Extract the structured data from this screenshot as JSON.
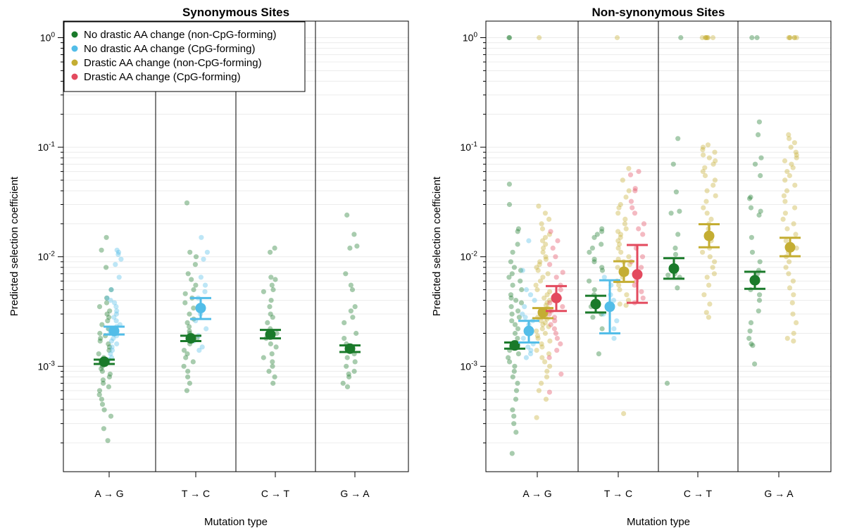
{
  "chart_data": [
    {
      "type": "scatter",
      "title": "Synonymous Sites",
      "xlabel": "Mutation type",
      "ylabel": "Predicted selection coefficient",
      "y_scale": "log10",
      "ylim": [
        0.00012,
        1.5
      ],
      "y_ticks": [
        {
          "value": 0.001,
          "base": "10",
          "exp": "-3"
        },
        {
          "value": 0.01,
          "base": "10",
          "exp": "-2"
        },
        {
          "value": 0.1,
          "base": "10",
          "exp": "-1"
        },
        {
          "value": 1,
          "base": "10",
          "exp": "0"
        }
      ],
      "grid": true,
      "legend_position": "top-left",
      "categories": [
        "A → G",
        "T → C",
        "C → T",
        "G → A"
      ],
      "series": [
        {
          "name": "No drastic AA change (non-CpG-forming)",
          "color": "#1a7a2a",
          "points": [
            {
              "category": "A → G",
              "values": [
                0.015,
                0.0115,
                0.008,
                0.005,
                0.0042,
                0.0038,
                0.0035,
                0.0032,
                0.003,
                0.0028,
                0.0026,
                0.0024,
                0.0022,
                0.002,
                0.0019,
                0.0018,
                0.0017,
                0.0016,
                0.0015,
                0.0014,
                0.0013,
                0.0012,
                0.0011,
                0.001,
                0.00095,
                0.0009,
                0.00085,
                0.0008,
                0.00075,
                0.0007,
                0.00065,
                0.0006,
                0.00055,
                0.0005,
                0.00045,
                0.0004,
                0.00035,
                0.00027,
                0.00021
              ]
            },
            {
              "category": "T → C",
              "values": [
                0.031,
                0.011,
                0.01,
                0.0085,
                0.007,
                0.0062,
                0.0055,
                0.005,
                0.0046,
                0.0042,
                0.0038,
                0.0034,
                0.003,
                0.0027,
                0.0025,
                0.0023,
                0.0021,
                0.002,
                0.0018,
                0.0016,
                0.0014,
                0.0013,
                0.0012,
                0.0011,
                0.001,
                0.0009,
                0.0008,
                0.0007,
                0.0006
              ]
            },
            {
              "category": "C → T",
              "values": [
                0.012,
                0.011,
                0.0065,
                0.0062,
                0.0055,
                0.005,
                0.0048,
                0.004,
                0.0035,
                0.003,
                0.0028,
                0.0025,
                0.0022,
                0.002,
                0.0018,
                0.0016,
                0.0015,
                0.0013,
                0.0012,
                0.0011,
                0.001,
                0.0009,
                0.0008,
                0.0007
              ]
            },
            {
              "category": "G → A",
              "values": [
                0.024,
                0.016,
                0.0125,
                0.012,
                0.007,
                0.0055,
                0.005,
                0.0035,
                0.0032,
                0.0028,
                0.0025,
                0.002,
                0.0018,
                0.0016,
                0.0015,
                0.0013,
                0.0012,
                0.0011,
                0.001,
                0.0009,
                0.00085,
                0.0008,
                0.0007,
                0.00065
              ]
            }
          ],
          "means": [
            {
              "category": "A → G",
              "mean": 0.0011,
              "lower": 0.00105,
              "upper": 0.00115
            },
            {
              "category": "T → C",
              "mean": 0.0018,
              "lower": 0.0017,
              "upper": 0.0019
            },
            {
              "category": "C → T",
              "mean": 0.00195,
              "lower": 0.0018,
              "upper": 0.00215
            },
            {
              "category": "G → A",
              "mean": 0.00145,
              "lower": 0.00135,
              "upper": 0.00155
            }
          ]
        },
        {
          "name": "No drastic AA change (CpG-forming)",
          "color": "#52bde8",
          "points": [
            {
              "category": "A → G",
              "values": [
                0.0115,
                0.011,
                0.0105,
                0.0095,
                0.0085,
                0.0065,
                0.005,
                0.0042,
                0.004,
                0.0038,
                0.0035,
                0.0032,
                0.003,
                0.0028,
                0.0026,
                0.0024,
                0.0023,
                0.0022,
                0.0021,
                0.002,
                0.0019,
                0.0018,
                0.0017,
                0.0016,
                0.0015,
                0.0014,
                0.0013,
                0.0012,
                0.00115
              ]
            },
            {
              "category": "T → C",
              "values": [
                0.015,
                0.011,
                0.0095,
                0.0065,
                0.0055,
                0.0048,
                0.0042,
                0.0036,
                0.003,
                0.0026,
                0.0022,
                0.0019,
                0.0017,
                0.0015,
                0.0014
              ]
            }
          ],
          "means": [
            {
              "category": "A → G",
              "mean": 0.0021,
              "lower": 0.00195,
              "upper": 0.0023
            },
            {
              "category": "T → C",
              "mean": 0.0034,
              "lower": 0.0027,
              "upper": 0.0042
            }
          ]
        }
      ]
    },
    {
      "type": "scatter",
      "title": "Non-synonymous Sites",
      "xlabel": "Mutation type",
      "ylabel": "Predicted selection coefficient",
      "y_scale": "log10",
      "ylim": [
        0.00012,
        1.5
      ],
      "y_ticks": [
        {
          "value": 0.001,
          "base": "10",
          "exp": "-3"
        },
        {
          "value": 0.01,
          "base": "10",
          "exp": "-2"
        },
        {
          "value": 0.1,
          "base": "10",
          "exp": "-1"
        },
        {
          "value": 1,
          "label": "10",
          "base": "10",
          "exp": "0"
        }
      ],
      "grid": true,
      "categories": [
        "A → G",
        "T → C",
        "C → T",
        "G → A"
      ],
      "series": [
        {
          "name": "No drastic AA change (non-CpG-forming)",
          "color": "#1a7a2a",
          "points": [
            {
              "category": "A → G",
              "values": [
                1,
                1,
                0.046,
                0.03,
                0.018,
                0.017,
                0.013,
                0.011,
                0.009,
                0.008,
                0.0075,
                0.007,
                0.0065,
                0.006,
                0.0055,
                0.005,
                0.0045,
                0.0042,
                0.004,
                0.0038,
                0.0035,
                0.0032,
                0.003,
                0.0028,
                0.0026,
                0.0024,
                0.0022,
                0.002,
                0.0018,
                0.0016,
                0.0015,
                0.0014,
                0.0013,
                0.0012,
                0.0011,
                0.001,
                0.0009,
                0.0008,
                0.0007,
                0.0006,
                0.0005,
                0.0004,
                0.00035,
                0.0003,
                0.00025,
                0.00016
              ]
            },
            {
              "category": "T → C",
              "values": [
                0.018,
                0.017,
                0.016,
                0.015,
                0.013,
                0.012,
                0.011,
                0.0095,
                0.009,
                0.008,
                0.0075,
                0.006,
                0.005,
                0.0045,
                0.0035,
                0.003,
                0.0028,
                0.0022,
                0.0013
              ]
            },
            {
              "category": "C → T",
              "values": [
                1,
                0.12,
                0.07,
                0.039,
                0.026,
                0.025,
                0.016,
                0.012,
                0.0105,
                0.007,
                0.0068,
                0.0065,
                0.0052,
                0.0007
              ]
            },
            {
              "category": "G → A",
              "values": [
                1,
                1,
                0.17,
                0.13,
                0.08,
                0.07,
                0.055,
                0.035,
                0.034,
                0.028,
                0.026,
                0.024,
                0.015,
                0.011,
                0.009,
                0.0075,
                0.007,
                0.006,
                0.005,
                0.0045,
                0.004,
                0.0032,
                0.0025,
                0.0021,
                0.0018,
                0.0016,
                0.00155,
                0.00105
              ]
            }
          ],
          "means": [
            {
              "category": "A → G",
              "mean": 0.00155,
              "lower": 0.00145,
              "upper": 0.00165
            },
            {
              "category": "T → C",
              "mean": 0.0037,
              "lower": 0.0031,
              "upper": 0.0044
            },
            {
              "category": "C → T",
              "mean": 0.0078,
              "lower": 0.0063,
              "upper": 0.0097
            },
            {
              "category": "G → A",
              "mean": 0.0061,
              "lower": 0.0051,
              "upper": 0.0073
            }
          ]
        },
        {
          "name": "No drastic AA change (CpG-forming)",
          "color": "#52bde8",
          "points": [
            {
              "category": "A → G",
              "values": [
                0.014,
                0.0075,
                0.005,
                0.0045,
                0.004,
                0.0035,
                0.003,
                0.0028,
                0.0026,
                0.0024,
                0.0022,
                0.002,
                0.0018,
                0.0016,
                0.0015,
                0.0014,
                0.0013,
                0.0012
              ]
            },
            {
              "category": "T → C",
              "values": [
                0.0065,
                0.0055,
                0.0045,
                0.004,
                0.0035,
                0.003,
                0.0026,
                0.0022,
                0.0018
              ]
            }
          ],
          "means": [
            {
              "category": "A → G",
              "mean": 0.0021,
              "lower": 0.00165,
              "upper": 0.0026
            },
            {
              "category": "T → C",
              "mean": 0.0035,
              "lower": 0.002,
              "upper": 0.0061
            }
          ]
        },
        {
          "name": "Drastic AA change (non-CpG-forming)",
          "color": "#c4ad32",
          "points": [
            {
              "category": "A → G",
              "values": [
                1,
                0.029,
                0.025,
                0.022,
                0.02,
                0.018,
                0.016,
                0.015,
                0.014,
                0.013,
                0.012,
                0.011,
                0.01,
                0.0095,
                0.009,
                0.0085,
                0.008,
                0.0075,
                0.007,
                0.0065,
                0.006,
                0.0055,
                0.005,
                0.0048,
                0.0045,
                0.0042,
                0.004,
                0.0038,
                0.0036,
                0.0034,
                0.0032,
                0.003,
                0.0029,
                0.0028,
                0.0027,
                0.0026,
                0.0025,
                0.0024,
                0.0023,
                0.0022,
                0.0021,
                0.002,
                0.0019,
                0.0018,
                0.0017,
                0.0016,
                0.0015,
                0.0014,
                0.0013,
                0.0012,
                0.0011,
                0.001,
                0.0009,
                0.0008,
                0.0007,
                0.0006,
                0.0005,
                0.00034
              ]
            },
            {
              "category": "T → C",
              "values": [
                1,
                0.064,
                0.05,
                0.04,
                0.035,
                0.03,
                0.028,
                0.025,
                0.022,
                0.02,
                0.018,
                0.017,
                0.016,
                0.015,
                0.014,
                0.013,
                0.012,
                0.011,
                0.01,
                0.0095,
                0.009,
                0.0085,
                0.008,
                0.0075,
                0.007,
                0.0065,
                0.006,
                0.0055,
                0.005,
                0.0045,
                0.004,
                0.0036,
                0.0037,
                0.00037
              ]
            },
            {
              "category": "C → T",
              "values": [
                1,
                1,
                1,
                1,
                1,
                1,
                1,
                0.105,
                0.1,
                0.095,
                0.09,
                0.085,
                0.08,
                0.075,
                0.07,
                0.065,
                0.06,
                0.055,
                0.05,
                0.045,
                0.04,
                0.036,
                0.032,
                0.028,
                0.025,
                0.022,
                0.02,
                0.018,
                0.016,
                0.014,
                0.012,
                0.011,
                0.01,
                0.009,
                0.008,
                0.007,
                0.0065,
                0.0055,
                0.0045,
                0.0037,
                0.0031,
                0.0028
              ]
            },
            {
              "category": "G → A",
              "values": [
                1,
                1,
                1,
                1,
                1,
                1,
                0.13,
                0.12,
                0.11,
                0.1,
                0.09,
                0.085,
                0.08,
                0.075,
                0.07,
                0.065,
                0.06,
                0.055,
                0.05,
                0.045,
                0.04,
                0.036,
                0.032,
                0.028,
                0.025,
                0.022,
                0.02,
                0.018,
                0.016,
                0.014,
                0.012,
                0.011,
                0.01,
                0.009,
                0.008,
                0.007,
                0.006,
                0.0052,
                0.0045,
                0.0038,
                0.003,
                0.0025,
                0.002,
                0.0018,
                0.0017
              ]
            }
          ],
          "means": [
            {
              "category": "A → G",
              "mean": 0.0031,
              "lower": 0.00275,
              "upper": 0.0034
            },
            {
              "category": "T → C",
              "mean": 0.0073,
              "lower": 0.0059,
              "upper": 0.0091
            },
            {
              "category": "C → T",
              "mean": 0.0155,
              "lower": 0.0122,
              "upper": 0.0198
            },
            {
              "category": "G → A",
              "mean": 0.0122,
              "lower": 0.0101,
              "upper": 0.0149
            }
          ]
        },
        {
          "name": "Drastic AA change (CpG-forming)",
          "color": "#e34a5e",
          "points": [
            {
              "category": "A → G",
              "values": [
                0.017,
                0.014,
                0.012,
                0.01,
                0.0085,
                0.0072,
                0.0065,
                0.0055,
                0.005,
                0.0045,
                0.0042,
                0.004,
                0.0038,
                0.0035,
                0.0032,
                0.003,
                0.0028,
                0.0026,
                0.0024,
                0.0022,
                0.002,
                0.0018,
                0.0016,
                0.0014,
                0.0012,
                0.00085,
                0.00058
              ]
            },
            {
              "category": "T → C",
              "values": [
                0.06,
                0.056,
                0.042,
                0.04,
                0.032,
                0.028,
                0.025,
                0.02,
                0.018,
                0.016,
                0.012,
                0.01,
                0.009,
                0.008,
                0.007,
                0.006,
                0.0055,
                0.0048,
                0.0042,
                0.0038
              ]
            }
          ],
          "means": [
            {
              "category": "A → G",
              "mean": 0.0042,
              "lower": 0.0032,
              "upper": 0.0054
            },
            {
              "category": "T → C",
              "mean": 0.0069,
              "lower": 0.0038,
              "upper": 0.0128
            }
          ]
        }
      ]
    }
  ]
}
